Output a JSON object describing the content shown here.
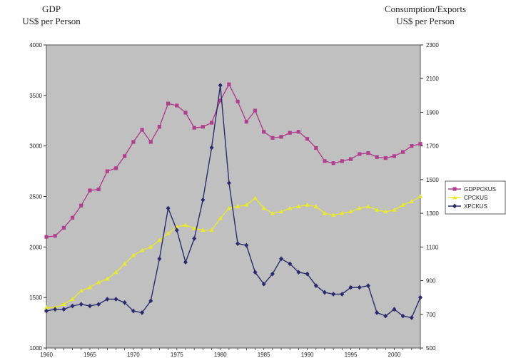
{
  "chart_data": {
    "type": "line",
    "left_axis_title": [
      "GDP",
      "US$ per Person"
    ],
    "right_axis_title": [
      "Consumption/Exports",
      "US$ per Person"
    ],
    "y_left_ticks": [
      "4000",
      "3500",
      "3000",
      "2500",
      "2000",
      "1500",
      "1000"
    ],
    "y_right_ticks": [
      "2300",
      "2100",
      "1900",
      "1700",
      "1500",
      "1300",
      "1100",
      "900",
      "700",
      "500"
    ],
    "x_ticks": [
      "1960",
      "1965",
      "1970",
      "1975",
      "1980",
      "1985",
      "1990",
      "1995",
      "2000"
    ],
    "ylim_left": [
      1000,
      4000
    ],
    "ylim_right": [
      500,
      2300
    ],
    "xlim": [
      1960,
      2003
    ],
    "grid": false,
    "legend_position": "right",
    "x": [
      1960,
      1961,
      1962,
      1963,
      1964,
      1965,
      1966,
      1967,
      1968,
      1969,
      1970,
      1971,
      1972,
      1973,
      1974,
      1975,
      1976,
      1977,
      1978,
      1979,
      1980,
      1981,
      1982,
      1983,
      1984,
      1985,
      1986,
      1987,
      1988,
      1989,
      1990,
      1991,
      1992,
      1993,
      1994,
      1995,
      1996,
      1997,
      1998,
      1999,
      2000,
      2001,
      2002,
      2003
    ],
    "series": [
      {
        "name": "GDPPCKUS",
        "axis": "left",
        "color": "#b0408f",
        "marker": "square",
        "values": [
          2100,
          2110,
          2190,
          2290,
          2410,
          2560,
          2570,
          2750,
          2780,
          2900,
          3040,
          3160,
          3040,
          3190,
          3420,
          3400,
          3330,
          3180,
          3190,
          3230,
          3450,
          3610,
          3440,
          3240,
          3350,
          3140,
          3080,
          3090,
          3130,
          3140,
          3070,
          2980,
          2850,
          2830,
          2850,
          2870,
          2920,
          2930,
          2890,
          2880,
          2900,
          2940,
          3000,
          3020
        ]
      },
      {
        "name": "CPCKUS",
        "axis": "right",
        "color": "#e8e832",
        "marker": "triangle",
        "values": [
          740,
          740,
          760,
          790,
          840,
          860,
          890,
          910,
          950,
          1000,
          1050,
          1080,
          1100,
          1140,
          1180,
          1220,
          1230,
          1210,
          1200,
          1200,
          1270,
          1330,
          1340,
          1350,
          1390,
          1330,
          1300,
          1310,
          1330,
          1340,
          1350,
          1340,
          1300,
          1290,
          1300,
          1310,
          1330,
          1340,
          1320,
          1310,
          1320,
          1350,
          1370,
          1400
        ]
      },
      {
        "name": "XPCKUS",
        "axis": "right",
        "color": "#2b2b6e",
        "marker": "diamond",
        "values": [
          720,
          730,
          730,
          750,
          760,
          750,
          760,
          790,
          790,
          770,
          720,
          710,
          780,
          1030,
          1330,
          1200,
          1010,
          1150,
          1380,
          1690,
          2060,
          1480,
          1120,
          1110,
          950,
          880,
          940,
          1030,
          1000,
          950,
          940,
          870,
          830,
          820,
          820,
          860,
          860,
          870,
          710,
          690,
          730,
          690,
          680,
          800
        ]
      }
    ]
  }
}
